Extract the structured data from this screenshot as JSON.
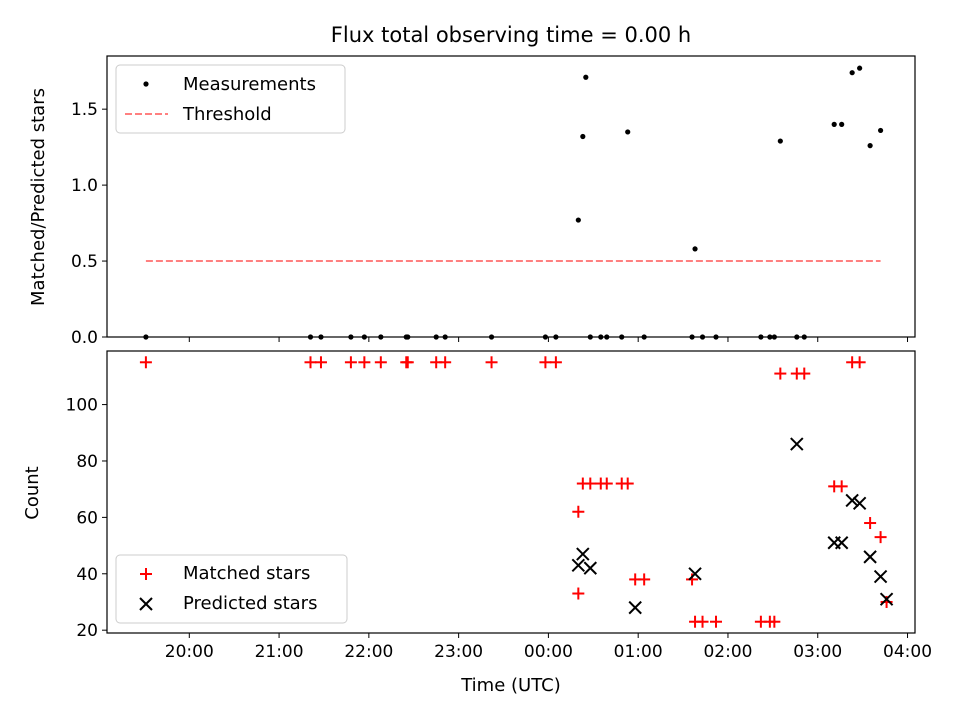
{
  "chart_data": [
    {
      "type": "scatter",
      "title": "Flux total observing time = 0.00 h",
      "xlabel": "",
      "ylabel": "Matched/Predicted stars",
      "ylim": [
        0,
        1.85
      ],
      "xlim": [
        "19:05",
        "04:05"
      ],
      "yticks": [
        {
          "v": 0.0,
          "label": "0.0"
        },
        {
          "v": 0.5,
          "label": "0.5"
        },
        {
          "v": 1.0,
          "label": "1.0"
        },
        {
          "v": 1.5,
          "label": "1.5"
        }
      ],
      "legend_position": "upper-left",
      "series": [
        {
          "name": "Measurements",
          "marker": "dot",
          "color": "#000000",
          "x": [
            "19:31",
            "21:21",
            "21:28",
            "21:48",
            "21:57",
            "22:08",
            "22:25",
            "22:26",
            "22:45",
            "22:51",
            "23:22",
            "23:58",
            "24:05",
            "24:20",
            "24:23",
            "24:25",
            "24:28",
            "24:35",
            "24:39",
            "24:49",
            "24:53",
            "25:04",
            "25:36",
            "25:38",
            "25:43",
            "25:52",
            "26:22",
            "26:28",
            "26:31",
            "26:35",
            "26:46",
            "26:51",
            "27:11",
            "27:16",
            "27:23",
            "27:28",
            "27:35",
            "27:42"
          ],
          "y": [
            0,
            0,
            0,
            0,
            0,
            0,
            0,
            0,
            0,
            0,
            0,
            0,
            0,
            0.77,
            1.32,
            1.71,
            0,
            0,
            0,
            0,
            1.35,
            0,
            0,
            0.58,
            0,
            0,
            0,
            0,
            0,
            1.29,
            0,
            0,
            1.4,
            1.4,
            1.74,
            1.77,
            1.26,
            1.36
          ]
        },
        {
          "name": "Threshold",
          "style": "dashed",
          "color": "#ff8080",
          "x": [
            "19:31",
            "27:42"
          ],
          "y": [
            0.5,
            0.5
          ]
        }
      ]
    },
    {
      "type": "scatter",
      "xlabel": "Time (UTC)",
      "ylabel": "Count",
      "ylim": [
        19,
        119
      ],
      "xlim": [
        "19:05",
        "04:05"
      ],
      "xticks": [
        "20:00",
        "21:00",
        "22:00",
        "23:00",
        "00:00",
        "01:00",
        "02:00",
        "03:00",
        "04:00"
      ],
      "yticks": [
        20,
        40,
        60,
        80,
        100
      ],
      "legend_position": "lower-left",
      "series": [
        {
          "name": "Matched stars",
          "marker": "plus",
          "color": "#ff0000",
          "x": [
            "19:31",
            "21:21",
            "21:28",
            "21:48",
            "21:57",
            "22:08",
            "22:25",
            "22:26",
            "22:45",
            "22:51",
            "23:22",
            "23:58",
            "24:05",
            "24:20",
            "24:20",
            "24:23",
            "24:28",
            "24:35",
            "24:39",
            "24:49",
            "24:53",
            "24:58",
            "25:04",
            "25:36",
            "25:38",
            "25:43",
            "25:52",
            "26:22",
            "26:28",
            "26:31",
            "26:35",
            "26:46",
            "26:51",
            "27:11",
            "27:16",
            "27:23",
            "27:28",
            "27:35",
            "27:42",
            "27:46"
          ],
          "y": [
            115,
            115,
            115,
            115,
            115,
            115,
            115,
            115,
            115,
            115,
            115,
            115,
            115,
            33,
            62,
            72,
            72,
            72,
            72,
            72,
            72,
            38,
            38,
            38,
            23,
            23,
            23,
            23,
            23,
            23,
            111,
            111,
            111,
            71,
            71,
            115,
            115,
            58,
            53,
            30
          ]
        },
        {
          "name": "Predicted stars",
          "marker": "x",
          "color": "#000000",
          "x": [
            "24:20",
            "24:23",
            "24:28",
            "24:58",
            "25:38",
            "26:46",
            "27:11",
            "27:16",
            "27:23",
            "27:28",
            "27:35",
            "27:42",
            "27:46"
          ],
          "y": [
            43,
            47,
            42,
            28,
            40,
            86,
            51,
            51,
            66,
            65,
            46,
            39,
            31
          ]
        }
      ]
    }
  ]
}
